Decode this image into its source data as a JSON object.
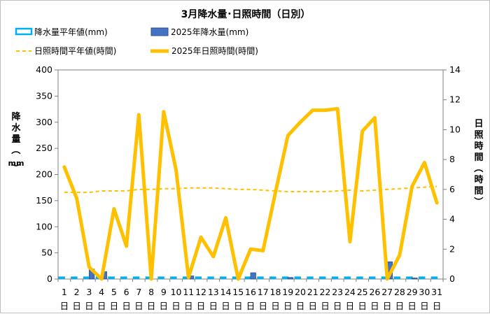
{
  "chart_data": {
    "type": "bar+line",
    "title": "3月降水量･日照時間（日別）",
    "categories": [
      "1",
      "2",
      "3",
      "4",
      "5",
      "6",
      "7",
      "8",
      "9",
      "10",
      "11",
      "12",
      "13",
      "14",
      "15",
      "16",
      "17",
      "18",
      "19",
      "20",
      "21",
      "22",
      "23",
      "24",
      "25",
      "26",
      "27",
      "28",
      "29",
      "30",
      "31"
    ],
    "day_suffix": "日",
    "left_axis": {
      "label_chars": [
        "降",
        "水",
        "量",
        "（",
        "mm",
        "）"
      ],
      "ylim": [
        0,
        400
      ],
      "ticks": [
        0,
        50,
        100,
        150,
        200,
        250,
        300,
        350,
        400
      ]
    },
    "right_axis": {
      "label_chars": [
        "日",
        "照",
        "時",
        "間",
        "（",
        "時",
        "間",
        "）"
      ],
      "ylim": [
        0,
        14
      ],
      "ticks": [
        0,
        2,
        4,
        6,
        8,
        10,
        12,
        14
      ]
    },
    "grid": false,
    "legend_position": "top",
    "series": [
      {
        "name": "降水量平年値(mm)",
        "kind": "bar",
        "axis": "left",
        "color": "#00b0f0",
        "fill": "#ffffff",
        "values": [
          3.5,
          3.5,
          3.5,
          3.5,
          3.5,
          3.5,
          3.5,
          3.5,
          3.5,
          3.5,
          3.5,
          3.5,
          3.5,
          3.5,
          3.5,
          3.5,
          3.5,
          3.5,
          3.5,
          3.5,
          3.5,
          3.5,
          3.5,
          3.5,
          3.5,
          3.5,
          3.5,
          3.5,
          3.5,
          3.5,
          3.5
        ]
      },
      {
        "name": "2025年降水量(mm)",
        "kind": "bar",
        "axis": "left",
        "color": "#4472c4",
        "values": [
          0,
          0,
          19,
          14,
          0,
          0,
          0,
          0,
          0,
          0,
          6,
          0,
          0,
          0,
          0,
          12,
          0,
          0,
          3,
          0,
          0,
          0,
          0,
          0,
          0,
          0,
          33,
          0,
          2,
          0,
          0
        ]
      },
      {
        "name": "日照時間平年値(時間)",
        "kind": "line",
        "axis": "right",
        "color": "#ffc000",
        "dash": true,
        "values": [
          5.8,
          5.8,
          5.8,
          5.9,
          5.9,
          5.9,
          6.0,
          6.0,
          6.05,
          6.05,
          6.1,
          6.1,
          6.1,
          6.05,
          6.0,
          6.0,
          5.95,
          5.9,
          5.85,
          5.85,
          5.85,
          5.85,
          5.9,
          5.95,
          5.9,
          5.95,
          6.0,
          6.05,
          6.1,
          6.15,
          6.2
        ]
      },
      {
        "name": "2025年日照時間(時間)",
        "kind": "line",
        "axis": "right",
        "color": "#ffc000",
        "values": [
          7.5,
          5.4,
          0.8,
          0,
          4.7,
          2.2,
          11,
          0,
          11.2,
          7.3,
          0.1,
          2.8,
          1.5,
          4.1,
          0,
          2,
          1.9,
          5.8,
          9.6,
          10.5,
          11.3,
          11.3,
          11.4,
          2.5,
          9.9,
          10.8,
          0,
          1.6,
          6.2,
          7.8,
          5.1
        ]
      }
    ]
  }
}
